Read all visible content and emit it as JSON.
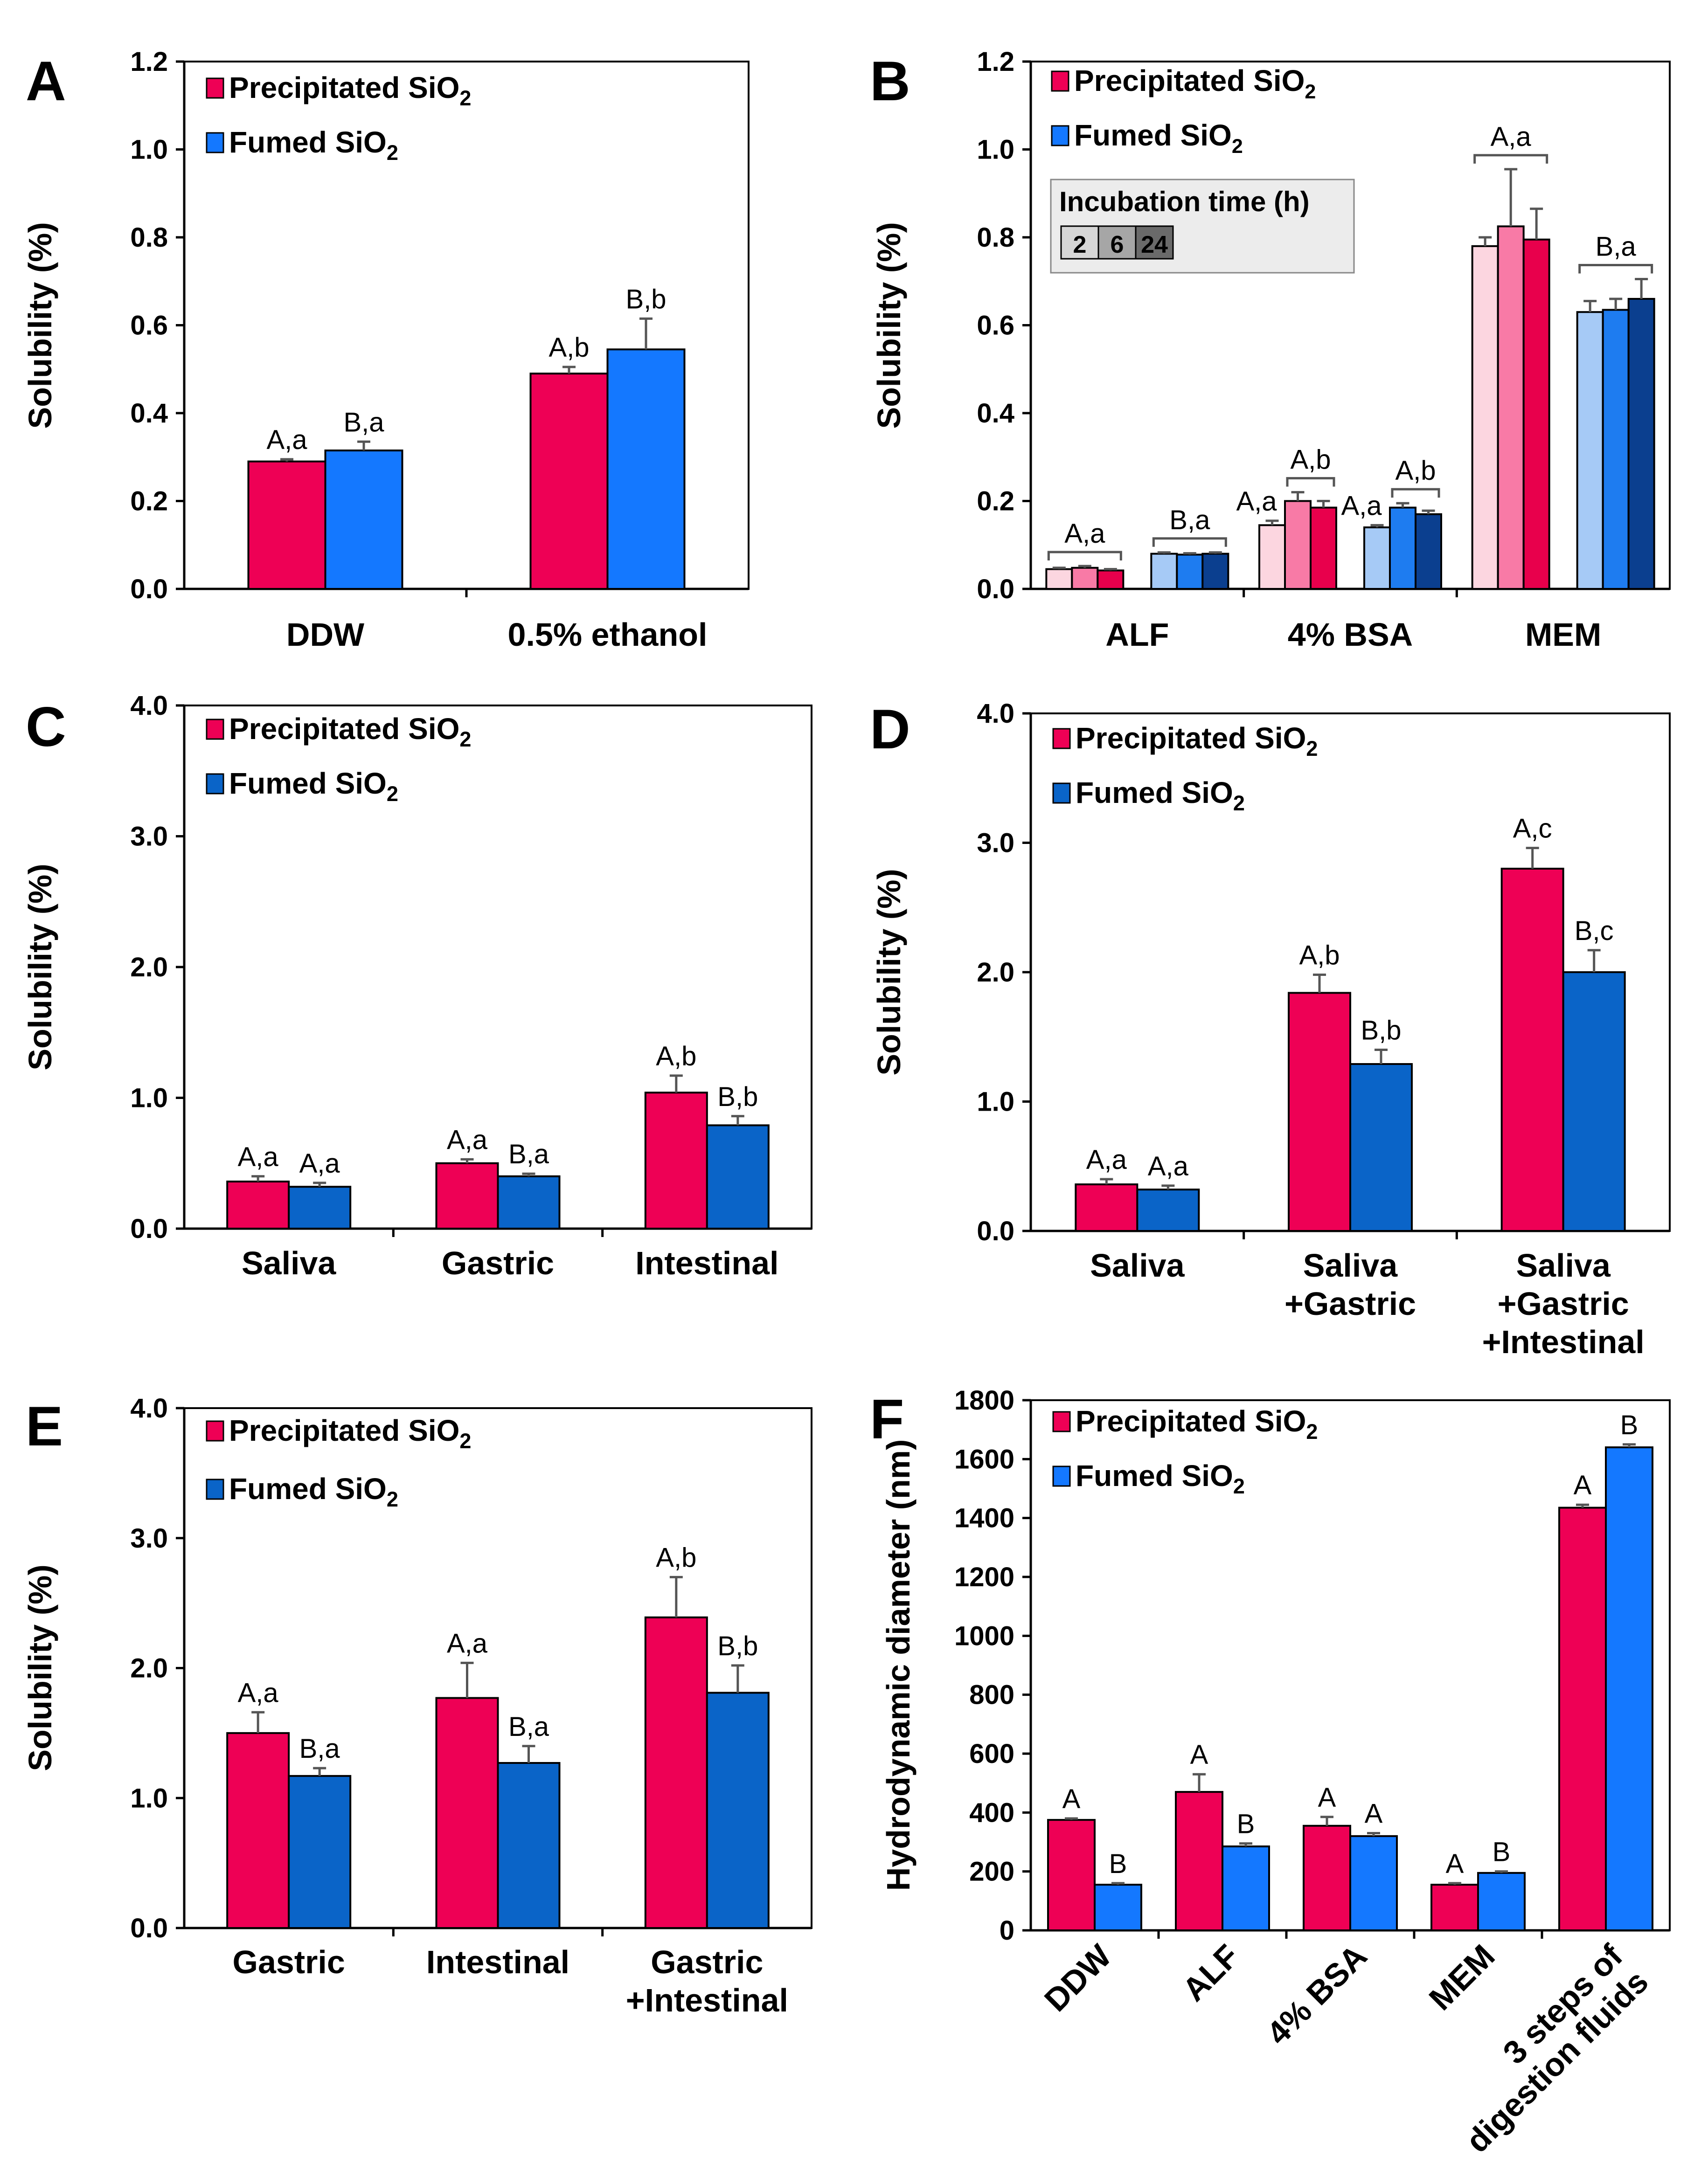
{
  "figure": {
    "legend": {
      "precipitated": "Precipitated SiO",
      "fumed": "Fumed SiO",
      "subscript": "2"
    },
    "colors": {
      "precipitated": "#ee0055",
      "fumed_bright": "#1478ff",
      "fumed_dark": "#0a64c8"
    }
  },
  "chart_data": [
    {
      "panel": "A",
      "type": "bar",
      "ylabel": "Solubility (%)",
      "ylim": [
        0,
        1.2
      ],
      "yticks": [
        "0.0",
        "0.2",
        "0.4",
        "0.6",
        "0.8",
        "1.0",
        "1.2"
      ],
      "categories": [
        "DDW",
        "0.5%  ethanol"
      ],
      "series": [
        {
          "name": "Precipitated SiO2",
          "values": [
            0.29,
            0.49
          ],
          "errors": [
            0.005,
            0.015
          ],
          "labels": [
            "A,a",
            "A,b"
          ]
        },
        {
          "name": "Fumed SiO2",
          "values": [
            0.315,
            0.545
          ],
          "errors": [
            0.02,
            0.07
          ],
          "labels": [
            "B,a",
            "B,b"
          ]
        }
      ]
    },
    {
      "panel": "B",
      "type": "bar",
      "ylabel": "Solubility (%)",
      "ylim": [
        0,
        1.2
      ],
      "yticks": [
        "0.0",
        "0.2",
        "0.4",
        "0.6",
        "0.8",
        "1.0",
        "1.2"
      ],
      "categories": [
        "ALF",
        "4%  BSA",
        "MEM"
      ],
      "inset": {
        "title": "Incubation time (h)",
        "times": [
          "2",
          "6",
          "24"
        ]
      },
      "groups": [
        {
          "category": "ALF",
          "material": "Precipitated",
          "values": [
            0.045,
            0.048,
            0.042
          ],
          "errors": [
            0.003,
            0.004,
            0.003
          ],
          "label": "A,a"
        },
        {
          "category": "ALF",
          "material": "Fumed",
          "values": [
            0.08,
            0.078,
            0.08
          ],
          "errors": [
            0.003,
            0.003,
            0.003
          ],
          "label": "B,a"
        },
        {
          "category": "4%  BSA",
          "material": "Precipitated",
          "values": [
            0.145,
            0.2,
            0.185
          ],
          "errors": [
            0.01,
            0.02,
            0.015
          ],
          "label": "A,a",
          "bracket_label": "A,b"
        },
        {
          "category": "4%  BSA",
          "material": "Fumed",
          "values": [
            0.14,
            0.185,
            0.17
          ],
          "errors": [
            0.005,
            0.01,
            0.008
          ],
          "label": "A,a",
          "bracket_label": "A,b"
        },
        {
          "category": "MEM",
          "material": "Precipitated",
          "values": [
            0.78,
            0.825,
            0.795
          ],
          "errors": [
            0.02,
            0.13,
            0.07
          ],
          "label": "A,a"
        },
        {
          "category": "MEM",
          "material": "Fumed",
          "values": [
            0.63,
            0.635,
            0.66
          ],
          "errors": [
            0.025,
            0.025,
            0.045
          ],
          "label": "B,a"
        }
      ]
    },
    {
      "panel": "C",
      "type": "bar",
      "ylabel": "Solubility (%)",
      "ylim": [
        0,
        4
      ],
      "yticks": [
        "0.0",
        "1.0",
        "2.0",
        "3.0",
        "4.0"
      ],
      "categories": [
        "Saliva",
        "Gastric",
        "Intestinal"
      ],
      "series": [
        {
          "name": "Precipitated SiO2",
          "values": [
            0.36,
            0.5,
            1.04
          ],
          "errors": [
            0.04,
            0.03,
            0.13
          ],
          "labels": [
            "A,a",
            "A,a",
            "A,b"
          ]
        },
        {
          "name": "Fumed SiO2",
          "values": [
            0.32,
            0.4,
            0.79
          ],
          "errors": [
            0.03,
            0.02,
            0.07
          ],
          "labels": [
            "A,a",
            "B,a",
            "B,b"
          ]
        }
      ]
    },
    {
      "panel": "D",
      "type": "bar",
      "ylabel": "Solubility (%)",
      "ylim": [
        0,
        4
      ],
      "yticks": [
        "0.0",
        "1.0",
        "2.0",
        "3.0",
        "4.0"
      ],
      "categories": [
        "Saliva",
        "Saliva\n+Gastric",
        "Saliva\n+Gastric\n+Intestinal"
      ],
      "series": [
        {
          "name": "Precipitated SiO2",
          "values": [
            0.36,
            1.84,
            2.8
          ],
          "errors": [
            0.04,
            0.14,
            0.16
          ],
          "labels": [
            "A,a",
            "A,b",
            "A,c"
          ]
        },
        {
          "name": "Fumed SiO2",
          "values": [
            0.32,
            1.29,
            2.0
          ],
          "errors": [
            0.03,
            0.11,
            0.17
          ],
          "labels": [
            "A,a",
            "B,b",
            "B,c"
          ]
        }
      ]
    },
    {
      "panel": "E",
      "type": "bar",
      "ylabel": "Solubility (%)",
      "ylim": [
        0,
        4
      ],
      "yticks": [
        "0.0",
        "1.0",
        "2.0",
        "3.0",
        "4.0"
      ],
      "categories": [
        "Gastric",
        "Intestinal",
        "Gastric\n+Intestinal"
      ],
      "series": [
        {
          "name": "Precipitated SiO2",
          "values": [
            1.5,
            1.77,
            2.39
          ],
          "errors": [
            0.16,
            0.27,
            0.31
          ],
          "labels": [
            "A,a",
            "A,a",
            "A,b"
          ]
        },
        {
          "name": "Fumed SiO2",
          "values": [
            1.17,
            1.27,
            1.81
          ],
          "errors": [
            0.06,
            0.13,
            0.21
          ],
          "labels": [
            "B,a",
            "B,a",
            "B,b"
          ]
        }
      ]
    },
    {
      "panel": "F",
      "type": "bar",
      "ylabel": "Hydrodynamic  diameter (nm)",
      "ylim": [
        0,
        1800
      ],
      "yticks": [
        "0",
        "200",
        "400",
        "600",
        "800",
        "1000",
        "1200",
        "1400",
        "1600",
        "1800"
      ],
      "categories": [
        "DDW",
        "ALF",
        "4% BSA",
        "MEM",
        "3 steps of\ndigestion fluids"
      ],
      "series": [
        {
          "name": "Precipitated SiO2",
          "values": [
            375,
            470,
            355,
            155,
            1435
          ],
          "errors": [
            5,
            60,
            30,
            5,
            10
          ],
          "labels": [
            "A",
            "A",
            "A",
            "A",
            "A"
          ]
        },
        {
          "name": "Fumed SiO2",
          "values": [
            155,
            285,
            320,
            195,
            1640
          ],
          "errors": [
            5,
            10,
            10,
            5,
            10
          ],
          "labels": [
            "B",
            "B",
            "A",
            "B",
            "B"
          ]
        }
      ]
    }
  ]
}
